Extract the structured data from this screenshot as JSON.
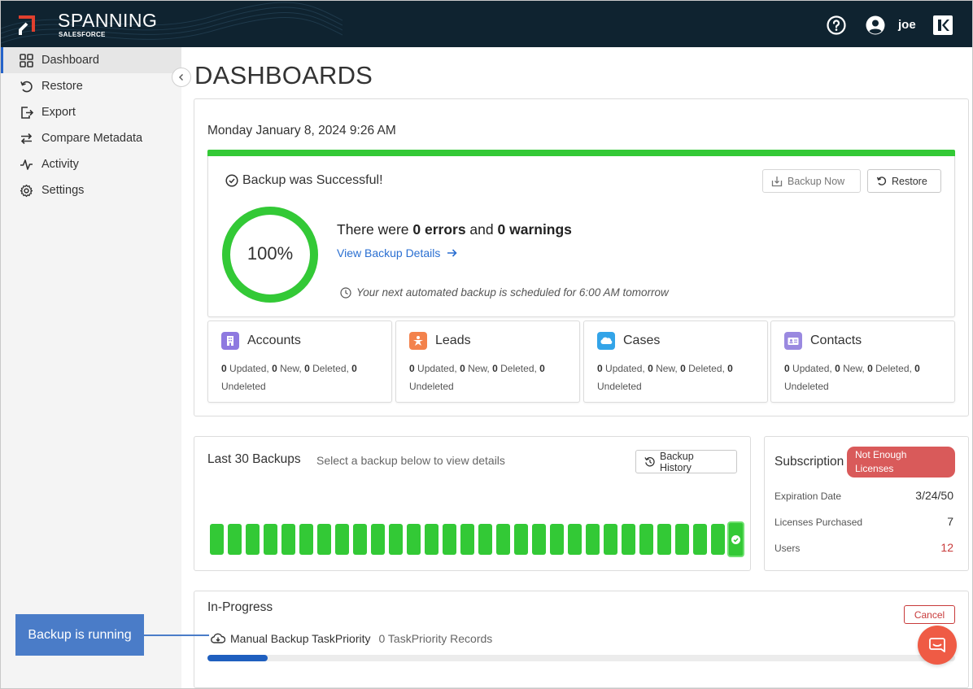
{
  "header": {
    "brand": "SPANNING",
    "brand_sub": "SALESFORCE",
    "user_name": "joe",
    "icons": [
      "help-icon",
      "user-icon",
      "kaseya-icon"
    ]
  },
  "sidebar": {
    "items": [
      {
        "label": "Dashboard",
        "icon": "grid-icon",
        "active": true
      },
      {
        "label": "Restore",
        "icon": "undo-icon"
      },
      {
        "label": "Export",
        "icon": "export-icon"
      },
      {
        "label": "Compare Metadata",
        "icon": "swap-icon"
      },
      {
        "label": "Activity",
        "icon": "pulse-icon"
      },
      {
        "label": "Settings",
        "icon": "gear-icon"
      }
    ]
  },
  "main": {
    "title": "DASHBOARDS",
    "datetime": "Monday January 8, 2024 9:26 AM",
    "status": {
      "message": "Backup was Successful!",
      "backup_now_label": "Backup Now",
      "restore_label": "Restore",
      "percent": 100,
      "percent_label": "100%",
      "errors_prefix": "There were ",
      "errors_count": "0 errors",
      "errors_mid": " and ",
      "warnings_count": "0 warnings",
      "details_link": "View Backup Details",
      "schedule_text": "Your next automated backup is scheduled for 6:00 AM tomorrow",
      "accent_color": "#33c936"
    },
    "objects": [
      {
        "title": "Accounts",
        "icon": "building-icon",
        "color": "#8e79e0",
        "updated": "0",
        "new": "0",
        "deleted": "0",
        "undeleted": "0"
      },
      {
        "title": "Leads",
        "icon": "star-person-icon",
        "color": "#f3824c",
        "updated": "0",
        "new": "0",
        "deleted": "0",
        "undeleted": "0"
      },
      {
        "title": "Cases",
        "icon": "salesforce-cloud-icon",
        "color": "#33a4e8",
        "updated": "0",
        "new": "0",
        "deleted": "0",
        "undeleted": "0"
      },
      {
        "title": "Contacts",
        "icon": "contact-card-icon",
        "color": "#9a89e0",
        "updated": "0",
        "new": "0",
        "deleted": "0",
        "undeleted": "0"
      }
    ],
    "stat_labels": {
      "updated": " Updated, ",
      "new": " New, ",
      "deleted": " Deleted, ",
      "undeleted": "Undeleted"
    },
    "backups": {
      "title": "Last 30 Backups",
      "hint": "Select a backup below to view details",
      "history_label": "Backup History",
      "count": 30,
      "status": "success"
    },
    "subscription": {
      "title": "Subscription",
      "badge": "Not Enough Licenses",
      "rows": [
        {
          "label": "Expiration Date",
          "value": "3/24/50"
        },
        {
          "label": "Licenses Purchased",
          "value": "7"
        },
        {
          "label": "Users",
          "value": "12",
          "alert": true
        }
      ]
    },
    "in_progress": {
      "title": "In-Progress",
      "cancel_label": "Cancel",
      "task_name": "Manual Backup TaskPriority",
      "task_records": "0 TaskPriority Records",
      "progress_fraction": 0.08
    }
  },
  "callout": {
    "text": "Backup is running"
  }
}
